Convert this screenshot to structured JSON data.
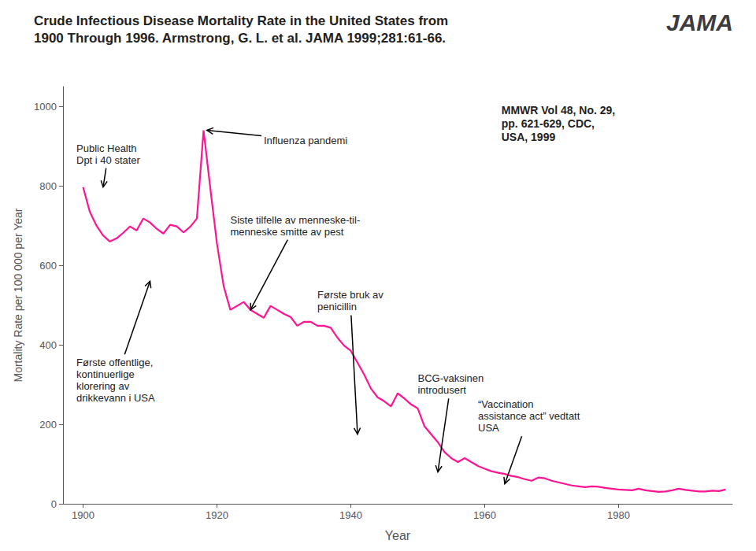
{
  "chart_data": {
    "type": "line",
    "title": "Crude Infectious Disease Mortality Rate in the United States from\n1900 Through 1996. Armstrong, G. L. et al. JAMA 1999;281:61-66.",
    "subtitle": "JAMA",
    "x_label": "Year",
    "y_label": "Mortality Rate per 100 000 per Year",
    "color": "#FF1493",
    "grid": false,
    "xlim": [
      1897,
      1997
    ],
    "ylim": [
      0,
      1050
    ],
    "xticks": [
      1900,
      1920,
      1940,
      1960,
      1980
    ],
    "yticks": [
      0,
      200,
      400,
      600,
      800,
      1000
    ],
    "x": [
      1900,
      1901,
      1902,
      1903,
      1904,
      1905,
      1906,
      1907,
      1908,
      1909,
      1910,
      1911,
      1912,
      1913,
      1914,
      1915,
      1916,
      1917,
      1918,
      1919,
      1920,
      1921,
      1922,
      1923,
      1924,
      1925,
      1926,
      1927,
      1928,
      1929,
      1930,
      1931,
      1932,
      1933,
      1934,
      1935,
      1936,
      1937,
      1938,
      1939,
      1940,
      1941,
      1942,
      1943,
      1944,
      1945,
      1946,
      1947,
      1948,
      1949,
      1950,
      1951,
      1952,
      1953,
      1954,
      1955,
      1956,
      1957,
      1958,
      1959,
      1960,
      1961,
      1962,
      1963,
      1964,
      1965,
      1966,
      1967,
      1968,
      1969,
      1970,
      1971,
      1972,
      1973,
      1974,
      1975,
      1976,
      1977,
      1978,
      1979,
      1980,
      1981,
      1982,
      1983,
      1984,
      1985,
      1986,
      1987,
      1988,
      1989,
      1990,
      1991,
      1992,
      1993,
      1994,
      1995,
      1996
    ],
    "values": [
      797,
      735,
      700,
      675,
      660,
      668,
      682,
      698,
      688,
      718,
      708,
      692,
      680,
      702,
      698,
      683,
      697,
      718,
      940,
      795,
      655,
      548,
      488,
      498,
      508,
      488,
      478,
      468,
      498,
      488,
      478,
      470,
      448,
      458,
      458,
      448,
      448,
      443,
      418,
      398,
      385,
      355,
      325,
      290,
      268,
      258,
      245,
      278,
      265,
      250,
      240,
      195,
      175,
      155,
      130,
      115,
      105,
      115,
      105,
      95,
      88,
      82,
      78,
      75,
      70,
      67,
      62,
      58,
      66,
      64,
      58,
      54,
      50,
      46,
      44,
      42,
      44,
      43,
      40,
      38,
      36,
      35,
      34,
      38,
      34,
      32,
      30,
      31,
      34,
      38,
      35,
      33,
      31,
      31,
      33,
      32,
      36
    ],
    "annotations": [
      {
        "text": "Public Health\nDpt i 40 stater",
        "xy": [
          1903,
          797
        ],
        "xytext": [
          1899,
          910
        ]
      },
      {
        "text": "Influenza pandemi",
        "xy": [
          1918.5,
          940
        ],
        "xytext": [
          1927,
          930
        ]
      },
      {
        "text": "Siste tilfelle av menneske-til-\nmenneske smitte av pest",
        "xy": [
          1925,
          488
        ],
        "xytext": [
          1922,
          730
        ]
      },
      {
        "text": "Første offentlige,\nkontinuerlige\nklorering av\ndrikkevann i USA",
        "xy": [
          1910,
          560
        ],
        "xytext": [
          1899,
          370
        ]
      },
      {
        "text": "Første bruk av\npenicillin",
        "xy": [
          1941,
          175
        ],
        "xytext": [
          1935,
          540
        ]
      },
      {
        "text": "BCG-vaksinen\nintrodusert",
        "xy": [
          1953,
          80
        ],
        "xytext": [
          1950,
          330
        ]
      },
      {
        "text": "“Vaccination\nassistance act” vedtatt\nUSA",
        "xy": [
          1963,
          50
        ],
        "xytext": [
          1959,
          265
        ]
      },
      {
        "text": "MMWR Vol 48, No. 29,\npp. 621-629, CDC,\nUSA, 1999"
      }
    ]
  }
}
